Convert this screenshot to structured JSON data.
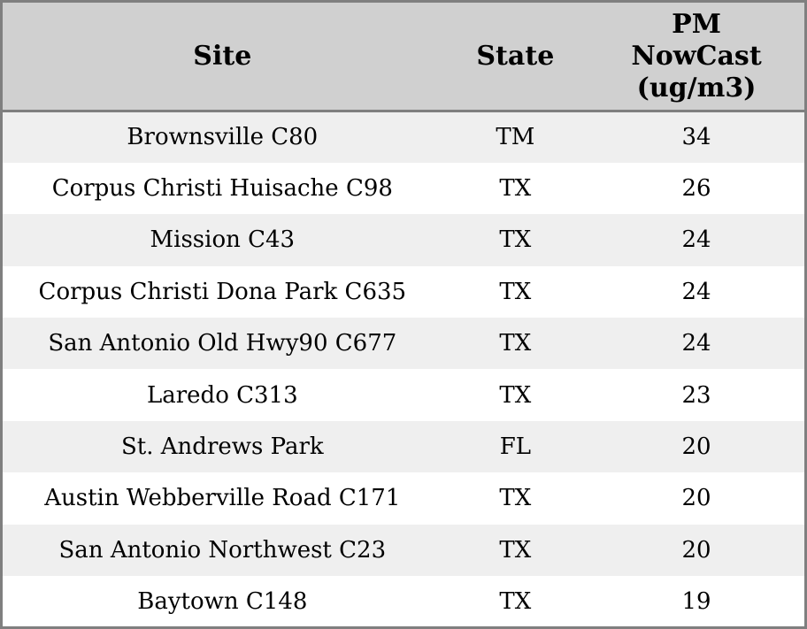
{
  "chart_data": {
    "type": "table",
    "title": "",
    "columns": [
      "Site",
      "State",
      "PM NowCast (ug/m3)"
    ],
    "rows": [
      {
        "site": "Brownsville C80",
        "state": "TM",
        "pm_nowcast": "34"
      },
      {
        "site": "Corpus Christi Huisache C98",
        "state": "TX",
        "pm_nowcast": "26"
      },
      {
        "site": "Mission C43",
        "state": "TX",
        "pm_nowcast": "24"
      },
      {
        "site": "Corpus Christi Dona Park C635",
        "state": "TX",
        "pm_nowcast": "24"
      },
      {
        "site": "San Antonio Old Hwy90 C677",
        "state": "TX",
        "pm_nowcast": "24"
      },
      {
        "site": "Laredo C313",
        "state": "TX",
        "pm_nowcast": "23"
      },
      {
        "site": "St. Andrews Park",
        "state": "FL",
        "pm_nowcast": "20"
      },
      {
        "site": "Austin Webberville Road C171",
        "state": "TX",
        "pm_nowcast": "20"
      },
      {
        "site": "San Antonio Northwest C23",
        "state": "TX",
        "pm_nowcast": "20"
      },
      {
        "site": "Baytown C148",
        "state": "TX",
        "pm_nowcast": "19"
      }
    ],
    "layout": {
      "striped_rows": true,
      "stripe_pattern": "odd-rows-gray",
      "column_alignment": [
        "center",
        "center",
        "center"
      ]
    }
  },
  "header": {
    "site_label": "Site",
    "state_label": "State",
    "pm_label": "PM\nNowCast\n(ug/m3)"
  },
  "colors": {
    "outer_border": "#7f7f7f",
    "header_divider": "#7f7f7f",
    "header_bg": "#d0d0d0",
    "row_stripe_bg": "#efefef",
    "row_bg": "#ffffff",
    "text": "#000000"
  }
}
